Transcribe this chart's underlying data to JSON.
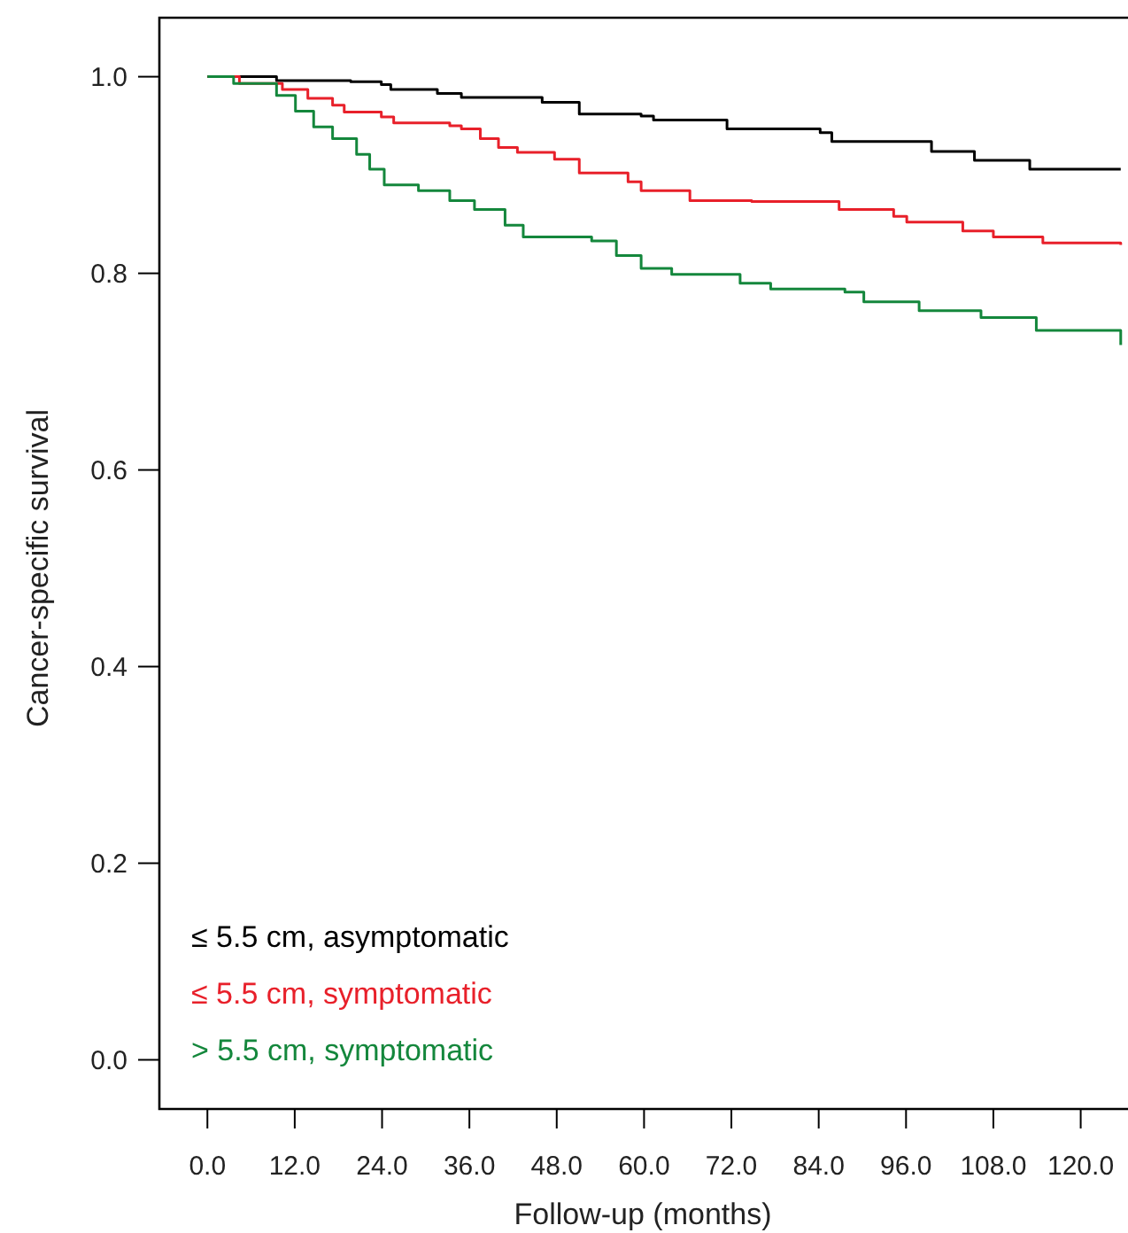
{
  "chart_data": {
    "type": "step",
    "xlabel": "Follow-up (months)",
    "ylabel": "Cancer-specific survival",
    "xlim": [
      -6.6,
      126.5
    ],
    "ylim": [
      -0.05,
      1.06
    ],
    "xticks": [
      {
        "value": 0,
        "label": "0.0"
      },
      {
        "value": 12,
        "label": "12.0"
      },
      {
        "value": 24,
        "label": "24.0"
      },
      {
        "value": 36,
        "label": "36.0"
      },
      {
        "value": 48,
        "label": "48.0"
      },
      {
        "value": 60,
        "label": "60.0"
      },
      {
        "value": 72,
        "label": "72.0"
      },
      {
        "value": 84,
        "label": "84.0"
      },
      {
        "value": 96,
        "label": "96.0"
      },
      {
        "value": 108,
        "label": "108.0"
      },
      {
        "value": 120,
        "label": "120.0"
      }
    ],
    "yticks": [
      {
        "value": 0,
        "label": "0.0"
      },
      {
        "value": 0.2,
        "label": "0.2"
      },
      {
        "value": 0.4,
        "label": "0.4"
      },
      {
        "value": 0.6,
        "label": "0.6"
      },
      {
        "value": 0.8,
        "label": "0.8"
      },
      {
        "value": 1,
        "label": "1.0"
      }
    ],
    "legend": "bottom left",
    "grid": false,
    "series": [
      {
        "name": "≤ 5.5 cm, asymptomatic",
        "color": "#000000",
        "x": [
          0,
          9.5,
          19.7,
          23.9,
          25.2,
          31.6,
          34.9,
          46,
          51.1,
          59.6,
          61.3,
          71.4,
          84.2,
          85.8,
          99.5,
          105.4,
          113,
          125.5
        ],
        "values": [
          1,
          0.996,
          0.995,
          0.992,
          0.987,
          0.983,
          0.979,
          0.974,
          0.962,
          0.96,
          0.956,
          0.947,
          0.943,
          0.934,
          0.924,
          0.915,
          0.906,
          0.906
        ]
      },
      {
        "name": "≤ 5.5 cm, symptomatic",
        "color": "#e8202a",
        "x": [
          0,
          4.4,
          10.3,
          13.8,
          17.2,
          18.8,
          23.9,
          25.6,
          33.3,
          34.9,
          37.5,
          40,
          42.6,
          47.7,
          51.1,
          57.8,
          59.6,
          66.3,
          74.8,
          86.8,
          94.3,
          96.1,
          103.8,
          108,
          114.8,
          125.5
        ],
        "values": [
          1,
          0.993,
          0.987,
          0.978,
          0.971,
          0.964,
          0.959,
          0.953,
          0.95,
          0.947,
          0.937,
          0.928,
          0.923,
          0.916,
          0.902,
          0.893,
          0.884,
          0.874,
          0.873,
          0.865,
          0.858,
          0.852,
          0.843,
          0.837,
          0.831,
          0.829
        ]
      },
      {
        "name": "> 5.5 cm, symptomatic",
        "color": "#14873c",
        "x": [
          0,
          3.6,
          9.5,
          12.1,
          14.6,
          17.2,
          20.5,
          22.3,
          24.3,
          29,
          33.3,
          36.7,
          40.9,
          43.4,
          52.8,
          56.2,
          59.6,
          63.8,
          73.2,
          77.4,
          87.6,
          90.2,
          97.8,
          106.3,
          113.9,
          125.5
        ],
        "values": [
          1,
          0.993,
          0.981,
          0.965,
          0.949,
          0.937,
          0.921,
          0.906,
          0.89,
          0.884,
          0.874,
          0.865,
          0.849,
          0.837,
          0.833,
          0.818,
          0.805,
          0.799,
          0.79,
          0.784,
          0.781,
          0.771,
          0.762,
          0.755,
          0.742,
          0.727
        ]
      }
    ]
  }
}
